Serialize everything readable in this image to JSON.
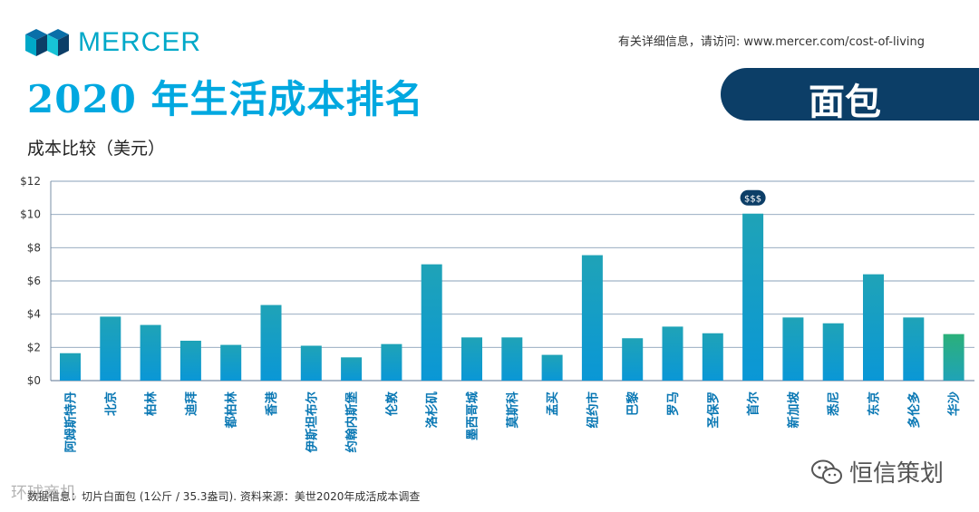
{
  "header": {
    "brand": "MERCER",
    "link_text": "有关详细信息，请访问: www.mercer.com/cost-of-living",
    "title": "2020 年生活成本排名",
    "badge": "面包",
    "subtitle": "成本比较（美元）"
  },
  "footnote": "数据信息：切片白面包 (1公斤 / 35.3盎司). 资料来源：美世2020年成活成本调查",
  "watermark": {
    "wechat": "恒信策划",
    "overlay": "环球商机"
  },
  "colors": {
    "accent": "#00a8e0",
    "navy": "#0c3e67",
    "bar_top": "#1fa3b7",
    "bar_bottom": "#0a97d6",
    "last_bar": "#2bb07a"
  },
  "chart_data": {
    "type": "bar",
    "title": "",
    "xlabel": "",
    "ylabel": "成本比较（美元）",
    "ylim": [
      0,
      12
    ],
    "yticks": [
      0,
      2,
      4,
      6,
      8,
      10,
      12
    ],
    "ytick_labels": [
      "$0",
      "$2",
      "$4",
      "$6",
      "$8",
      "$10",
      "$12"
    ],
    "grid": true,
    "highlight": {
      "category": "首尔",
      "label": "$$$"
    },
    "categories": [
      "阿姆斯特丹",
      "北京",
      "柏林",
      "迪拜",
      "都柏林",
      "香港",
      "伊斯坦布尔",
      "约翰内斯堡",
      "伦敦",
      "洛杉矶",
      "墨西哥城",
      "莫斯科",
      "孟买",
      "纽约市",
      "巴黎",
      "罗马",
      "圣保罗",
      "首尔",
      "新加坡",
      "悉尼",
      "东京",
      "多伦多",
      "华沙"
    ],
    "values": [
      1.65,
      3.85,
      3.35,
      2.4,
      2.15,
      4.55,
      2.1,
      1.4,
      2.2,
      7.0,
      2.6,
      2.6,
      1.55,
      7.55,
      2.55,
      3.25,
      2.85,
      10.05,
      3.8,
      3.45,
      6.4,
      3.8,
      2.8
    ]
  }
}
